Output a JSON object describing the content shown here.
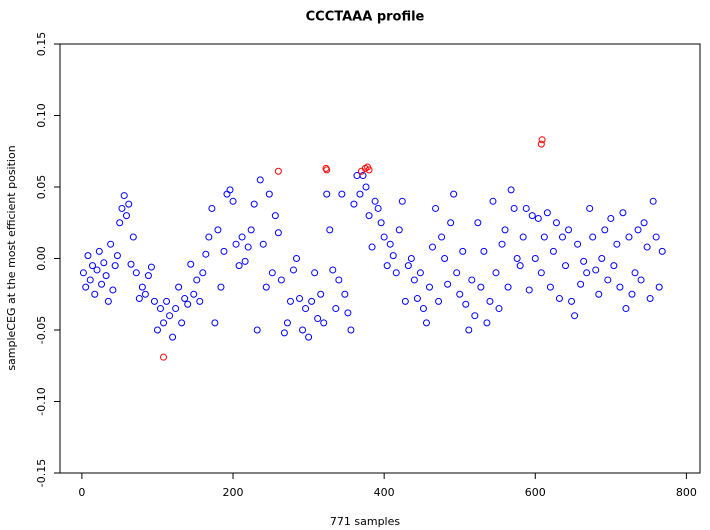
{
  "chart_data": {
    "type": "scatter",
    "title": "CCCTAAA profile",
    "x_label": "771 samples",
    "y_label": "sampleCEG at the most efficient position",
    "xlim": [
      -29,
      818
    ],
    "xticks": [
      0,
      200,
      400,
      600,
      800
    ],
    "ylim": [
      -0.15,
      0.15
    ],
    "yticks": [
      {
        "value": -0.15,
        "label": "-0.15"
      },
      {
        "value": -0.1,
        "label": "-0.10"
      },
      {
        "value": -0.05,
        "label": "-0.05"
      },
      {
        "value": 0,
        "label": "0.00"
      },
      {
        "value": 0.05,
        "label": "0.05"
      },
      {
        "value": 0.1,
        "label": "0.10"
      },
      {
        "value": 0.15,
        "label": "0.15"
      }
    ],
    "series": [
      {
        "color": "#0000ff",
        "x": [
          2,
          5,
          8,
          11,
          14,
          17,
          20,
          23,
          26,
          29,
          32,
          35,
          38,
          41,
          44,
          47,
          50,
          53,
          56,
          59,
          62,
          65,
          68,
          72,
          76,
          80,
          84,
          88,
          92,
          96,
          100,
          104,
          108,
          112,
          116,
          120,
          124,
          128,
          132,
          136,
          140,
          144,
          148,
          152,
          156,
          160,
          164,
          168,
          172,
          176,
          180,
          184,
          188,
          192,
          196,
          200,
          204,
          208,
          212,
          216,
          220,
          224,
          228,
          232,
          236,
          240,
          244,
          248,
          252,
          256,
          260,
          264,
          268,
          272,
          276,
          280,
          284,
          288,
          292,
          296,
          300,
          304,
          308,
          312,
          316,
          320,
          324,
          328,
          332,
          336,
          340,
          344,
          348,
          352,
          356,
          360,
          364,
          368,
          372,
          376,
          380,
          384,
          388,
          392,
          396,
          400,
          404,
          408,
          412,
          416,
          420,
          424,
          428,
          432,
          436,
          440,
          444,
          448,
          452,
          456,
          460,
          464,
          468,
          472,
          476,
          480,
          484,
          488,
          492,
          496,
          500,
          504,
          508,
          512,
          516,
          520,
          524,
          528,
          532,
          536,
          540,
          544,
          548,
          552,
          556,
          560,
          564,
          568,
          572,
          576,
          580,
          584,
          588,
          592,
          596,
          600,
          604,
          608,
          612,
          616,
          620,
          624,
          628,
          632,
          636,
          640,
          644,
          648,
          652,
          656,
          660,
          664,
          668,
          672,
          676,
          680,
          684,
          688,
          692,
          696,
          700,
          704,
          708,
          712,
          716,
          720,
          724,
          728,
          732,
          736,
          740,
          744,
          748,
          752,
          756,
          760,
          764,
          768
        ],
        "values": [
          -0.01,
          -0.02,
          0.002,
          -0.015,
          -0.005,
          -0.025,
          -0.008,
          0.005,
          -0.018,
          -0.003,
          -0.012,
          -0.03,
          0.01,
          -0.022,
          -0.005,
          0.002,
          0.025,
          0.035,
          0.044,
          0.03,
          0.038,
          -0.004,
          0.015,
          -0.01,
          -0.028,
          -0.02,
          -0.025,
          -0.012,
          -0.006,
          -0.03,
          -0.05,
          -0.035,
          -0.045,
          -0.03,
          -0.04,
          -0.055,
          -0.035,
          -0.02,
          -0.045,
          -0.028,
          -0.032,
          -0.004,
          -0.025,
          -0.015,
          -0.03,
          -0.01,
          0.003,
          0.015,
          0.035,
          -0.045,
          0.02,
          -0.02,
          0.005,
          0.045,
          0.048,
          0.04,
          0.01,
          -0.005,
          0.015,
          -0.002,
          0.008,
          0.02,
          0.038,
          -0.05,
          0.055,
          0.01,
          -0.02,
          0.045,
          -0.01,
          0.03,
          0.018,
          -0.015,
          -0.052,
          -0.045,
          -0.03,
          -0.008,
          0.0,
          -0.028,
          -0.05,
          -0.035,
          -0.055,
          -0.03,
          -0.01,
          -0.042,
          -0.025,
          -0.045,
          0.045,
          0.02,
          -0.008,
          -0.035,
          -0.015,
          0.045,
          -0.025,
          -0.038,
          -0.05,
          0.038,
          0.058,
          0.045,
          0.058,
          0.05,
          0.03,
          0.008,
          0.04,
          0.035,
          0.025,
          0.015,
          -0.005,
          0.01,
          0.002,
          -0.01,
          0.02,
          0.04,
          -0.03,
          -0.005,
          0.0,
          -0.015,
          -0.028,
          -0.01,
          -0.035,
          -0.045,
          -0.02,
          0.008,
          0.035,
          -0.03,
          0.015,
          0.0,
          -0.018,
          0.025,
          0.045,
          -0.01,
          -0.025,
          0.005,
          -0.032,
          -0.05,
          -0.015,
          -0.04,
          0.025,
          -0.02,
          0.005,
          -0.045,
          -0.03,
          0.04,
          -0.01,
          -0.035,
          0.01,
          0.02,
          -0.02,
          0.048,
          0.035,
          0.0,
          -0.005,
          0.015,
          0.035,
          -0.022,
          0.03,
          0.0,
          0.028,
          -0.01,
          0.015,
          0.032,
          -0.02,
          0.005,
          0.025,
          -0.028,
          0.015,
          -0.005,
          0.02,
          -0.03,
          -0.04,
          0.01,
          -0.018,
          -0.002,
          -0.01,
          0.035,
          0.015,
          -0.008,
          -0.025,
          0.0,
          0.02,
          -0.015,
          0.028,
          -0.005,
          0.01,
          -0.02,
          0.032,
          -0.035,
          0.015,
          -0.025,
          -0.01,
          0.02,
          -0.015,
          0.025,
          0.008,
          -0.028,
          0.04,
          0.015,
          -0.02,
          0.005
        ]
      },
      {
        "color": "#ff0000",
        "x": [
          108,
          260,
          323,
          324,
          370,
          375,
          378,
          380,
          608,
          609
        ],
        "values": [
          -0.069,
          0.061,
          0.063,
          0.062,
          0.061,
          0.063,
          0.064,
          0.062,
          0.08,
          0.083
        ]
      }
    ]
  }
}
